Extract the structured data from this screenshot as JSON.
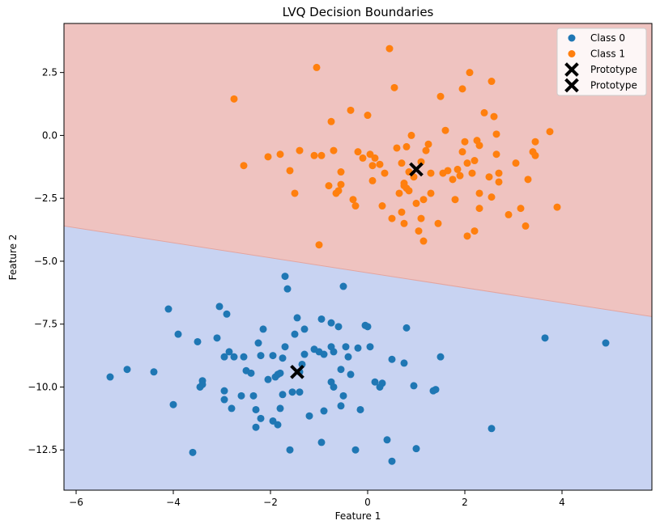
{
  "chart_data": {
    "type": "scatter",
    "title": "LVQ Decision Boundaries",
    "xlabel": "Feature 1",
    "ylabel": "Feature 2",
    "xlim": [
      -6.25,
      5.85
    ],
    "ylim": [
      -14.1,
      4.45
    ],
    "xticks": [
      -6,
      -4,
      -2,
      0,
      2,
      4
    ],
    "yticks": [
      2.5,
      0.0,
      -2.5,
      -5.0,
      -7.5,
      -10.0,
      -12.5
    ],
    "grid": false,
    "legend_position": "top-right",
    "background_regions": {
      "description_free": true,
      "upper_color": "#efc3c0",
      "lower_color": "#c8d3f2",
      "boundary": [
        [
          -6.25,
          -3.6
        ],
        [
          5.85,
          -7.2
        ]
      ]
    },
    "series": [
      {
        "name": "Class 0",
        "color": "#1f77b4",
        "marker": "circle",
        "points": [
          [
            -5.3,
            -9.6
          ],
          [
            -4.95,
            -9.3
          ],
          [
            -4.4,
            -9.4
          ],
          [
            -4.1,
            -6.9
          ],
          [
            -4.0,
            -10.7
          ],
          [
            -3.9,
            -7.9
          ],
          [
            -3.6,
            -12.6
          ],
          [
            -3.5,
            -8.2
          ],
          [
            -3.45,
            -10.0
          ],
          [
            -3.4,
            -9.75
          ],
          [
            -3.4,
            -9.9
          ],
          [
            -3.1,
            -8.05
          ],
          [
            -3.05,
            -6.8
          ],
          [
            -2.95,
            -10.15
          ],
          [
            -2.95,
            -10.5
          ],
          [
            -2.95,
            -8.8
          ],
          [
            -2.9,
            -7.1
          ],
          [
            -2.85,
            -8.6
          ],
          [
            -2.8,
            -10.85
          ],
          [
            -2.75,
            -8.8
          ],
          [
            -2.6,
            -10.35
          ],
          [
            -2.55,
            -8.8
          ],
          [
            -2.5,
            -9.35
          ],
          [
            -2.4,
            -9.45
          ],
          [
            -2.35,
            -10.35
          ],
          [
            -2.3,
            -10.9
          ],
          [
            -2.3,
            -11.6
          ],
          [
            -2.25,
            -8.25
          ],
          [
            -2.2,
            -11.25
          ],
          [
            -2.2,
            -8.75
          ],
          [
            -2.15,
            -7.7
          ],
          [
            -2.05,
            -9.7
          ],
          [
            -1.95,
            -11.35
          ],
          [
            -1.95,
            -8.75
          ],
          [
            -1.9,
            -9.6
          ],
          [
            -1.85,
            -11.5
          ],
          [
            -1.85,
            -9.5
          ],
          [
            -1.8,
            -9.45
          ],
          [
            -1.8,
            -10.85
          ],
          [
            -1.75,
            -8.85
          ],
          [
            -1.75,
            -10.3
          ],
          [
            -1.7,
            -8.4
          ],
          [
            -1.7,
            -5.6
          ],
          [
            -1.65,
            -6.1
          ],
          [
            -1.6,
            -12.5
          ],
          [
            -1.55,
            -10.2
          ],
          [
            -1.5,
            -7.9
          ],
          [
            -1.45,
            -7.25
          ],
          [
            -1.4,
            -10.2
          ],
          [
            -1.4,
            -9.4
          ],
          [
            -1.35,
            -9.1
          ],
          [
            -1.3,
            -7.7
          ],
          [
            -1.3,
            -8.7
          ],
          [
            -1.2,
            -11.15
          ],
          [
            -1.1,
            -8.5
          ],
          [
            -1.0,
            -8.6
          ],
          [
            -0.95,
            -12.2
          ],
          [
            -0.95,
            -7.3
          ],
          [
            -0.9,
            -8.7
          ],
          [
            -0.9,
            -10.95
          ],
          [
            -0.75,
            -7.45
          ],
          [
            -0.75,
            -8.4
          ],
          [
            -0.75,
            -9.8
          ],
          [
            -0.7,
            -8.6
          ],
          [
            -0.7,
            -10.0
          ],
          [
            -0.6,
            -7.6
          ],
          [
            -0.55,
            -9.3
          ],
          [
            -0.55,
            -10.75
          ],
          [
            -0.5,
            -10.35
          ],
          [
            -0.5,
            -6.0
          ],
          [
            -0.45,
            -8.4
          ],
          [
            -0.4,
            -8.8
          ],
          [
            -0.35,
            -9.5
          ],
          [
            -0.25,
            -12.5
          ],
          [
            -0.2,
            -8.45
          ],
          [
            -0.15,
            -10.9
          ],
          [
            -0.05,
            -7.55
          ],
          [
            0.0,
            -7.6
          ],
          [
            0.05,
            -8.4
          ],
          [
            0.15,
            -9.8
          ],
          [
            0.25,
            -10.0
          ],
          [
            0.3,
            -9.85
          ],
          [
            0.4,
            -12.1
          ],
          [
            0.5,
            -8.9
          ],
          [
            0.5,
            -12.95
          ],
          [
            0.75,
            -9.05
          ],
          [
            0.8,
            -7.65
          ],
          [
            0.95,
            -9.95
          ],
          [
            1.0,
            -12.45
          ],
          [
            1.35,
            -10.15
          ],
          [
            1.4,
            -10.1
          ],
          [
            1.5,
            -8.8
          ],
          [
            2.55,
            -11.65
          ],
          [
            3.65,
            -8.05
          ],
          [
            4.9,
            -8.25
          ]
        ]
      },
      {
        "name": "Class 1",
        "color": "#ff7f0e",
        "marker": "circle",
        "points": [
          [
            -2.75,
            1.45
          ],
          [
            -2.55,
            -1.2
          ],
          [
            -2.05,
            -0.85
          ],
          [
            -1.8,
            -0.75
          ],
          [
            -1.6,
            -1.4
          ],
          [
            -1.5,
            -2.3
          ],
          [
            -1.4,
            -0.6
          ],
          [
            -1.1,
            -0.8
          ],
          [
            -1.05,
            2.7
          ],
          [
            -1.0,
            -4.35
          ],
          [
            -0.95,
            -0.8
          ],
          [
            -0.8,
            -2.0
          ],
          [
            -0.75,
            0.55
          ],
          [
            -0.7,
            -0.6
          ],
          [
            -0.65,
            -2.3
          ],
          [
            -0.6,
            -2.2
          ],
          [
            -0.55,
            -1.95
          ],
          [
            -0.55,
            -1.45
          ],
          [
            -0.35,
            1.0
          ],
          [
            -0.3,
            -2.55
          ],
          [
            -0.25,
            -2.8
          ],
          [
            -0.2,
            -0.65
          ],
          [
            -0.1,
            -0.9
          ],
          [
            0.0,
            0.8
          ],
          [
            0.05,
            -0.75
          ],
          [
            0.1,
            -1.8
          ],
          [
            0.1,
            -1.2
          ],
          [
            0.15,
            -0.9
          ],
          [
            0.25,
            -1.15
          ],
          [
            0.3,
            -2.8
          ],
          [
            0.35,
            -1.5
          ],
          [
            0.45,
            3.45
          ],
          [
            0.5,
            -3.3
          ],
          [
            0.55,
            1.9
          ],
          [
            0.6,
            -0.5
          ],
          [
            0.65,
            -2.3
          ],
          [
            0.7,
            -1.1
          ],
          [
            0.7,
            -3.05
          ],
          [
            0.75,
            -2.0
          ],
          [
            0.75,
            -1.9
          ],
          [
            0.75,
            -3.5
          ],
          [
            0.8,
            -2.1
          ],
          [
            0.8,
            -0.45
          ],
          [
            0.85,
            -1.45
          ],
          [
            0.85,
            -2.2
          ],
          [
            0.9,
            0.0
          ],
          [
            0.95,
            -1.65
          ],
          [
            1.0,
            -2.7
          ],
          [
            1.05,
            -3.8
          ],
          [
            1.1,
            -1.05
          ],
          [
            1.1,
            -3.3
          ],
          [
            1.15,
            -4.2
          ],
          [
            1.15,
            -2.55
          ],
          [
            1.2,
            -0.6
          ],
          [
            1.25,
            -0.35
          ],
          [
            1.3,
            -2.3
          ],
          [
            1.3,
            -1.5
          ],
          [
            1.45,
            -3.5
          ],
          [
            1.5,
            1.55
          ],
          [
            1.55,
            -1.5
          ],
          [
            1.6,
            0.2
          ],
          [
            1.65,
            -1.4
          ],
          [
            1.75,
            -1.75
          ],
          [
            1.8,
            -2.55
          ],
          [
            1.85,
            -1.35
          ],
          [
            1.9,
            -1.6
          ],
          [
            1.95,
            -0.65
          ],
          [
            1.95,
            1.85
          ],
          [
            2.0,
            -0.25
          ],
          [
            2.05,
            -4.0
          ],
          [
            2.05,
            -1.1
          ],
          [
            2.1,
            2.5
          ],
          [
            2.15,
            -1.5
          ],
          [
            2.2,
            -1.0
          ],
          [
            2.2,
            -3.8
          ],
          [
            2.25,
            -0.2
          ],
          [
            2.3,
            -2.3
          ],
          [
            2.3,
            -2.9
          ],
          [
            2.3,
            -0.4
          ],
          [
            2.4,
            0.9
          ],
          [
            2.5,
            -1.65
          ],
          [
            2.55,
            -2.45
          ],
          [
            2.55,
            2.15
          ],
          [
            2.6,
            0.75
          ],
          [
            2.65,
            -0.75
          ],
          [
            2.65,
            0.05
          ],
          [
            2.7,
            -1.85
          ],
          [
            2.7,
            -1.5
          ],
          [
            2.9,
            -3.15
          ],
          [
            3.05,
            -1.1
          ],
          [
            3.15,
            -2.9
          ],
          [
            3.25,
            -3.6
          ],
          [
            3.3,
            -1.75
          ],
          [
            3.4,
            -0.65
          ],
          [
            3.45,
            -0.25
          ],
          [
            3.45,
            -0.8
          ],
          [
            3.75,
            0.15
          ],
          [
            3.9,
            -2.85
          ]
        ]
      },
      {
        "name": "Prototype",
        "color": "#000000",
        "marker": "x",
        "points": [
          [
            -1.45,
            -9.4
          ]
        ]
      },
      {
        "name": "Prototype",
        "color": "#000000",
        "marker": "x",
        "points": [
          [
            1.0,
            -1.35
          ]
        ]
      }
    ]
  }
}
